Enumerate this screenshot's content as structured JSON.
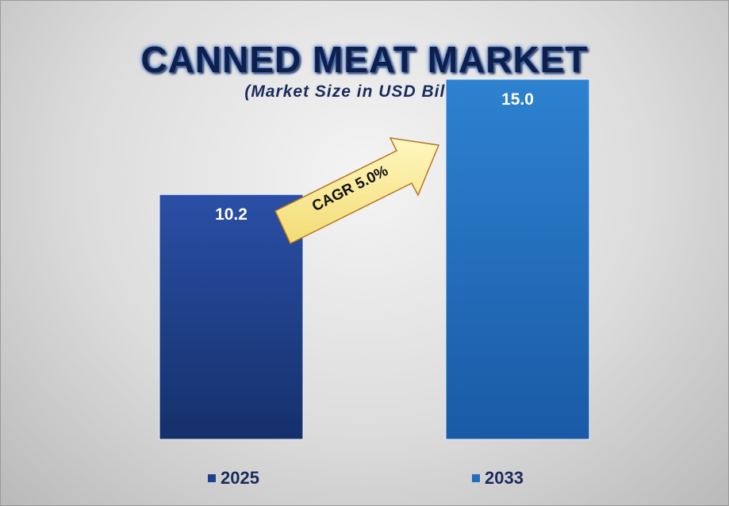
{
  "title": "CANNED MEAT MARKET",
  "subtitle": "(Market Size in USD Billion)",
  "chart_data": {
    "type": "bar",
    "categories": [
      "2025",
      "2033"
    ],
    "values": [
      10.2,
      15.0
    ],
    "value_labels": [
      "10.2",
      "15.0"
    ],
    "ylim": [
      0,
      18.3
    ],
    "grid": false,
    "legend_placement": "bottom",
    "colors": [
      "#1e3f8f",
      "#1f6fbf"
    ],
    "annotation": "CAGR 5.0%"
  }
}
